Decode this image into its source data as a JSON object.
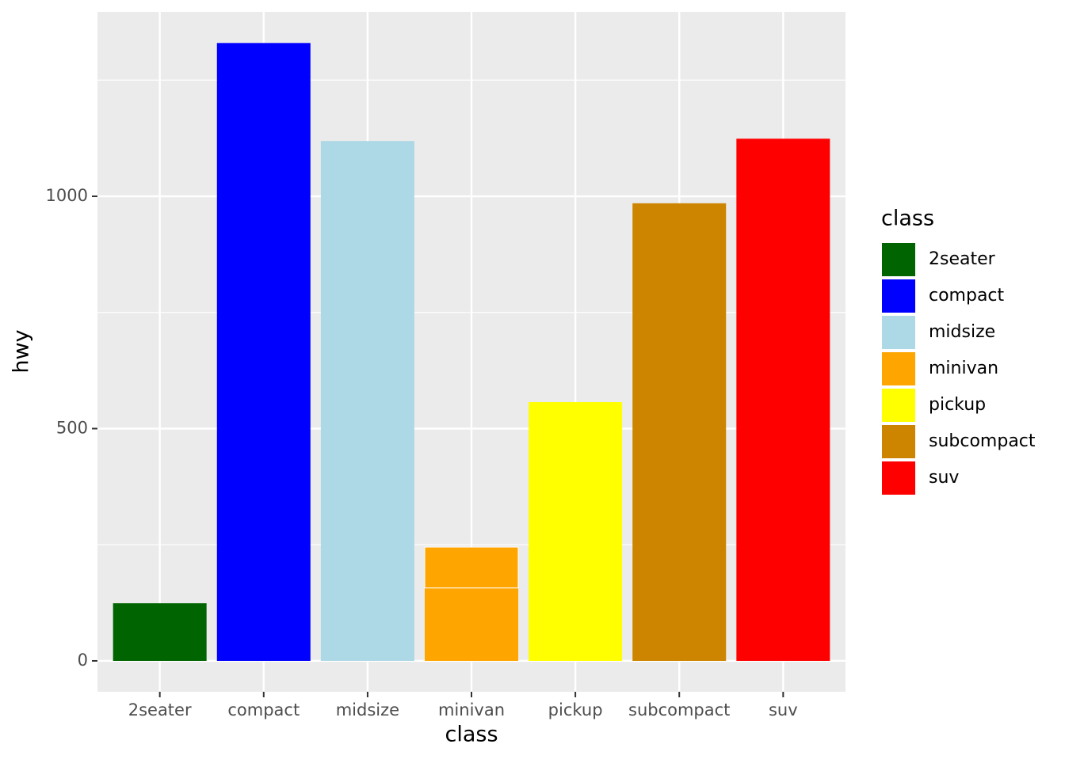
{
  "chart_data": {
    "type": "bar",
    "x_label": "class",
    "y_label": "hwy",
    "legend_title": "class",
    "categories": [
      "2seater",
      "compact",
      "midsize",
      "minivan",
      "pickup",
      "subcompact",
      "suv"
    ],
    "colors": [
      "#006400",
      "#0000ff",
      "#add8e6",
      "#ffa500",
      "#ffff00",
      "#cd8500",
      "#ff0000"
    ],
    "values": [
      [
        124
      ],
      [
        1330
      ],
      [
        1119
      ],
      [
        157,
        88
      ],
      [
        557
      ],
      [
        985
      ],
      [
        1124
      ]
    ],
    "ylim": [
      -66.5,
      1397
    ],
    "yticks": [
      0,
      500,
      1000
    ],
    "minor_yticks": [
      250,
      750,
      1250
    ],
    "grid": true,
    "legend": "right"
  }
}
